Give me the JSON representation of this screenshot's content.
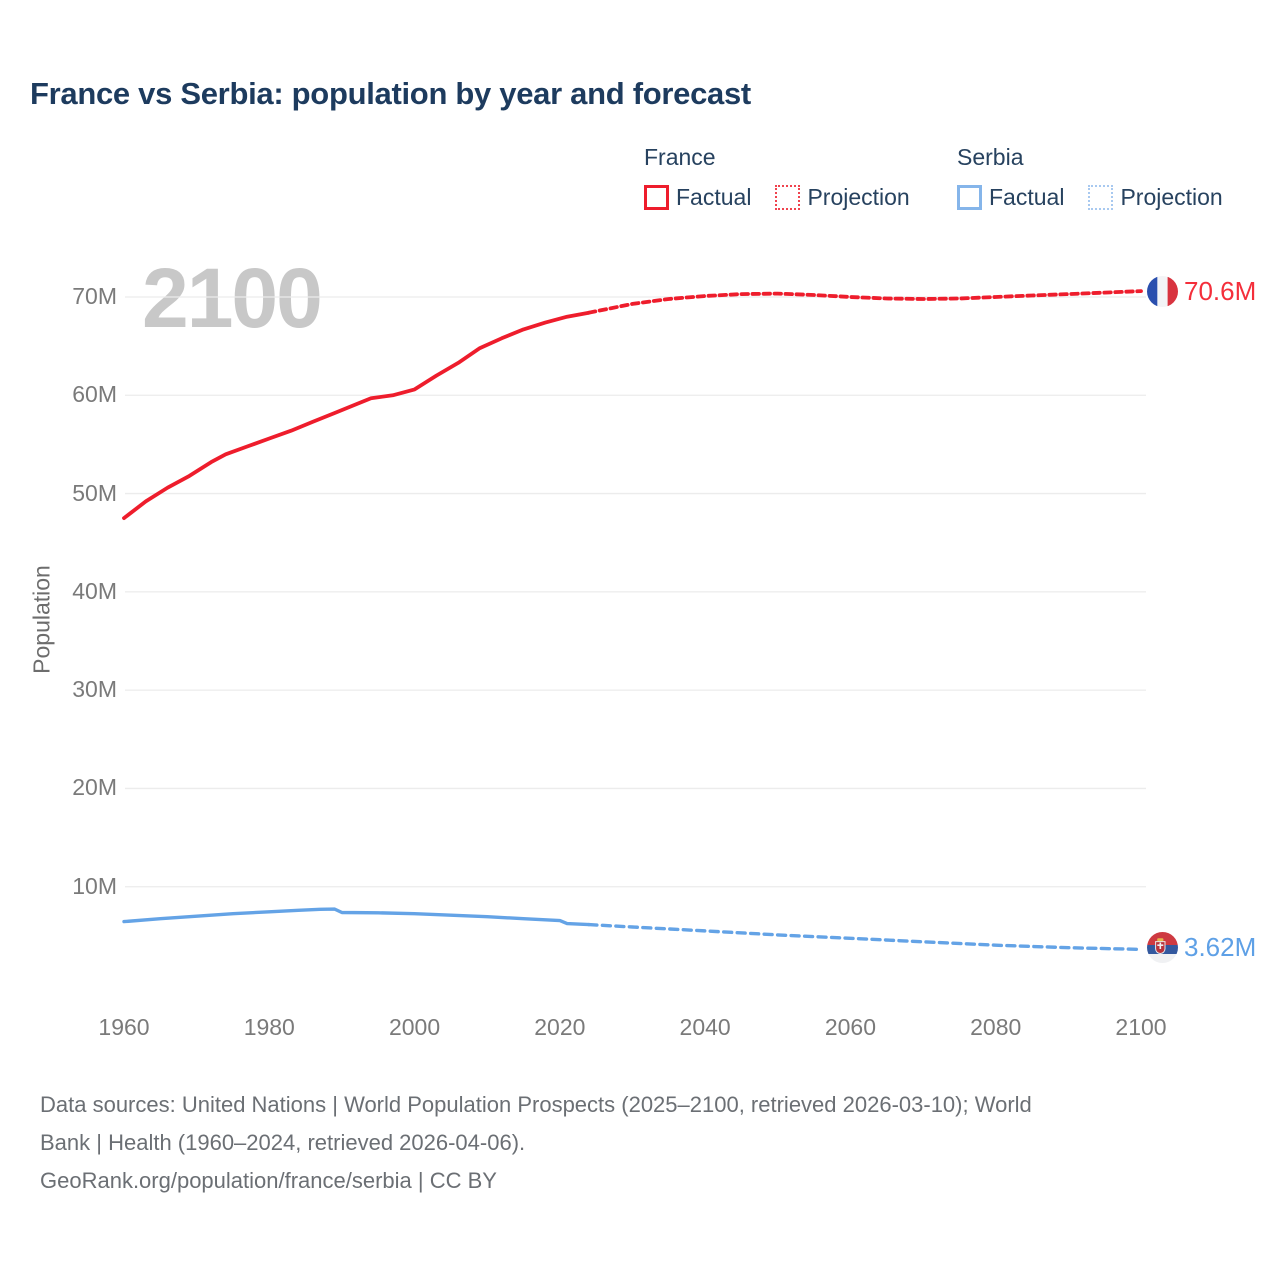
{
  "page": {
    "title": "France vs Serbia: population by year and forecast",
    "watermark": "2100"
  },
  "legend": {
    "groups": [
      {
        "country": "France",
        "color": "#ee1d2c",
        "items": [
          {
            "label": "Factual",
            "style": "solid"
          },
          {
            "label": "Projection",
            "style": "dotted"
          }
        ]
      },
      {
        "country": "Serbia",
        "color": "#85b5ea",
        "items": [
          {
            "label": "Factual",
            "style": "solid"
          },
          {
            "label": "Projection",
            "style": "dotted"
          }
        ]
      }
    ]
  },
  "footer": {
    "sources_line1": "Data sources: United Nations | World Population Prospects (2025–2100, retrieved 2026-03-10); World",
    "sources_line2": "Bank | Health (1960–2024, retrieved 2026-04-06).",
    "attribution": "GeoRank.org/population/france/serbia | CC BY"
  },
  "chart_data": {
    "type": "line",
    "title": "France vs Serbia: population by year and forecast",
    "xlabel": "",
    "ylabel": "Population",
    "units": "millions of people",
    "xlim": [
      1960,
      2100
    ],
    "ylim": [
      0,
      70
    ],
    "grid": "horizontal",
    "legend_position": "top-right",
    "x_ticks": [
      {
        "value": 1960,
        "label": "1960"
      },
      {
        "value": 1980,
        "label": "1980"
      },
      {
        "value": 2000,
        "label": "2000"
      },
      {
        "value": 2020,
        "label": "2020"
      },
      {
        "value": 2040,
        "label": "2040"
      },
      {
        "value": 2060,
        "label": "2060"
      },
      {
        "value": 2080,
        "label": "2080"
      },
      {
        "value": 2100,
        "label": "2100"
      }
    ],
    "y_ticks": [
      {
        "value": 10,
        "label": "10M"
      },
      {
        "value": 20,
        "label": "20M"
      },
      {
        "value": 30,
        "label": "30M"
      },
      {
        "value": 40,
        "label": "40M"
      },
      {
        "value": 50,
        "label": "50M"
      },
      {
        "value": 60,
        "label": "60M"
      },
      {
        "value": 70,
        "label": "70M"
      }
    ],
    "series": [
      {
        "name": "France Factual",
        "country": "France",
        "kind": "factual",
        "color": "#ee1d2c",
        "line_style": "solid",
        "points": [
          [
            1960,
            47.5
          ],
          [
            1963,
            49.2
          ],
          [
            1966,
            50.6
          ],
          [
            1969,
            51.8
          ],
          [
            1972,
            53.2
          ],
          [
            1974,
            54.0
          ],
          [
            1977,
            54.8
          ],
          [
            1980,
            55.6
          ],
          [
            1983,
            56.4
          ],
          [
            1986,
            57.3
          ],
          [
            1989,
            58.2
          ],
          [
            1992,
            59.1
          ],
          [
            1994,
            59.7
          ],
          [
            1997,
            60.0
          ],
          [
            2000,
            60.6
          ],
          [
            2003,
            62.0
          ],
          [
            2006,
            63.3
          ],
          [
            2009,
            64.8
          ],
          [
            2012,
            65.8
          ],
          [
            2015,
            66.7
          ],
          [
            2018,
            67.4
          ],
          [
            2021,
            68.0
          ],
          [
            2024,
            68.4
          ]
        ]
      },
      {
        "name": "France Projection",
        "country": "France",
        "kind": "projection",
        "color": "#ee1d2c",
        "line_style": "dashed",
        "end_label": "70.6M",
        "end_flag": "france",
        "points": [
          [
            2024,
            68.4
          ],
          [
            2030,
            69.3
          ],
          [
            2035,
            69.8
          ],
          [
            2040,
            70.1
          ],
          [
            2045,
            70.3
          ],
          [
            2050,
            70.35
          ],
          [
            2055,
            70.2
          ],
          [
            2060,
            70.0
          ],
          [
            2065,
            69.85
          ],
          [
            2070,
            69.8
          ],
          [
            2075,
            69.85
          ],
          [
            2080,
            70.0
          ],
          [
            2085,
            70.15
          ],
          [
            2090,
            70.3
          ],
          [
            2095,
            70.45
          ],
          [
            2100,
            70.6
          ]
        ]
      },
      {
        "name": "Serbia Factual",
        "country": "Serbia",
        "kind": "factual",
        "color": "#64a3e6",
        "line_style": "solid",
        "points": [
          [
            1960,
            6.45
          ],
          [
            1965,
            6.75
          ],
          [
            1970,
            7.0
          ],
          [
            1975,
            7.25
          ],
          [
            1980,
            7.45
          ],
          [
            1984,
            7.6
          ],
          [
            1987,
            7.7
          ],
          [
            1989,
            7.72
          ],
          [
            1990,
            7.38
          ],
          [
            1995,
            7.35
          ],
          [
            2000,
            7.25
          ],
          [
            2005,
            7.1
          ],
          [
            2010,
            6.95
          ],
          [
            2015,
            6.75
          ],
          [
            2020,
            6.55
          ],
          [
            2021,
            6.25
          ],
          [
            2024,
            6.15
          ]
        ]
      },
      {
        "name": "Serbia Projection",
        "country": "Serbia",
        "kind": "projection",
        "color": "#64a3e6",
        "line_style": "dashed",
        "end_label": "3.62M",
        "end_flag": "serbia",
        "points": [
          [
            2024,
            6.15
          ],
          [
            2030,
            5.9
          ],
          [
            2040,
            5.5
          ],
          [
            2050,
            5.1
          ],
          [
            2060,
            4.75
          ],
          [
            2070,
            4.4
          ],
          [
            2080,
            4.05
          ],
          [
            2090,
            3.8
          ],
          [
            2100,
            3.62
          ]
        ]
      }
    ]
  }
}
